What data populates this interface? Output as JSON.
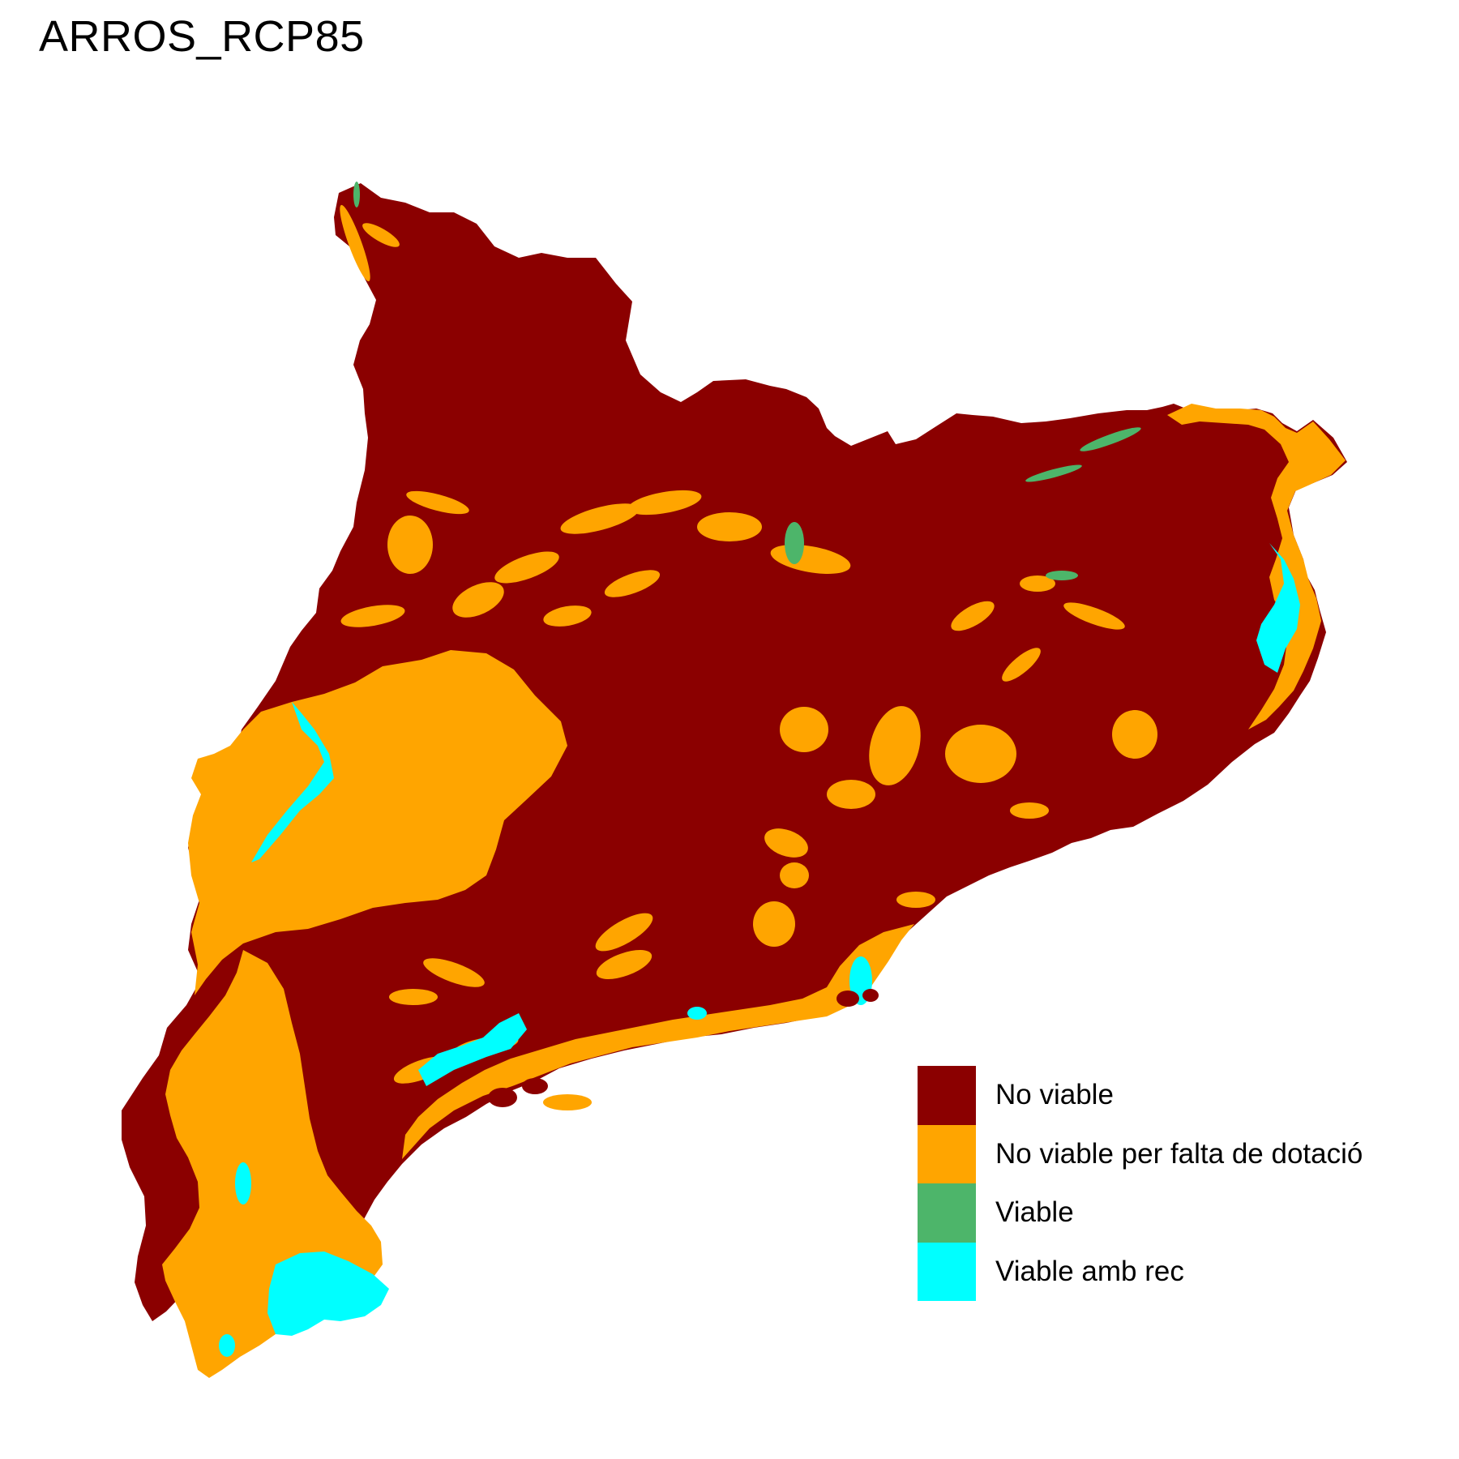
{
  "title": "ARROS_RCP85",
  "colors": {
    "no_viable": "#8B0000",
    "no_viable_dotacio": "#FFA500",
    "viable": "#4DB56A",
    "viable_amb_rec": "#00FFFF",
    "background": "#FFFFFF"
  },
  "legend": {
    "items": [
      {
        "key": "no_viable",
        "label": "No viable"
      },
      {
        "key": "no_viable_dotacio",
        "label": "No viable per falta de dotació"
      },
      {
        "key": "viable",
        "label": "Viable"
      },
      {
        "key": "viable_amb_rec",
        "label": "Viable amb rec"
      }
    ]
  }
}
